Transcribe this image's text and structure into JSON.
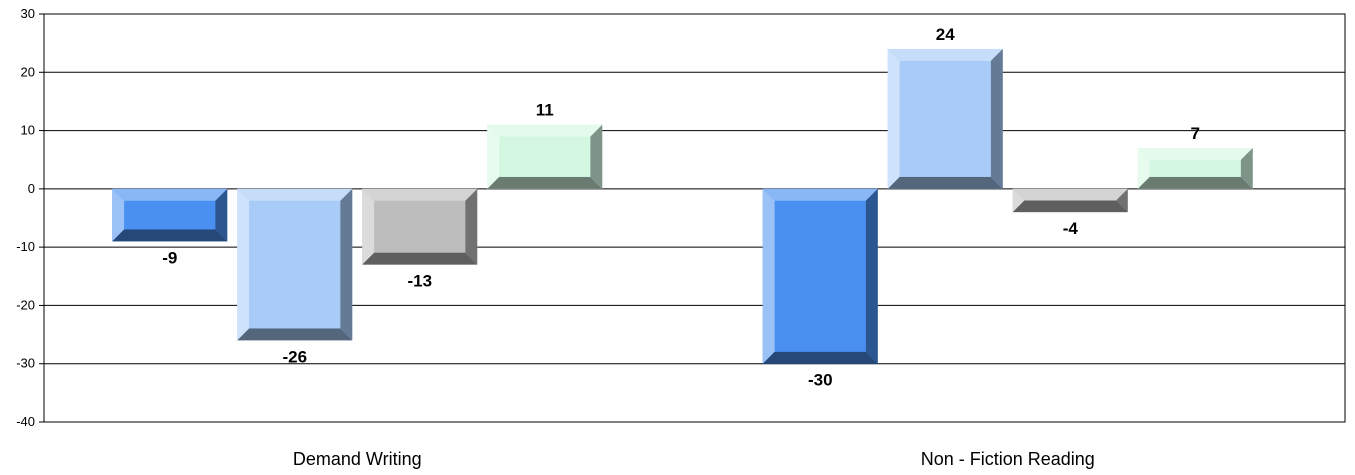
{
  "chart_data": {
    "type": "bar",
    "categories": [
      "Demand Writing",
      "Non - Fiction Reading"
    ],
    "series": [
      {
        "values": [
          -9,
          -30
        ],
        "color": "#4a90f0"
      },
      {
        "values": [
          -26,
          24
        ],
        "color": "#a8cbf8"
      },
      {
        "values": [
          -13,
          -4
        ],
        "color": "#bdbdbd"
      },
      {
        "values": [
          11,
          7
        ],
        "color": "#d4f7e2"
      }
    ],
    "ylim": [
      -40,
      30
    ],
    "yticks": [
      30,
      20,
      10,
      0,
      -10,
      -20,
      -30,
      -40
    ],
    "grid": true,
    "legend": "none"
  }
}
